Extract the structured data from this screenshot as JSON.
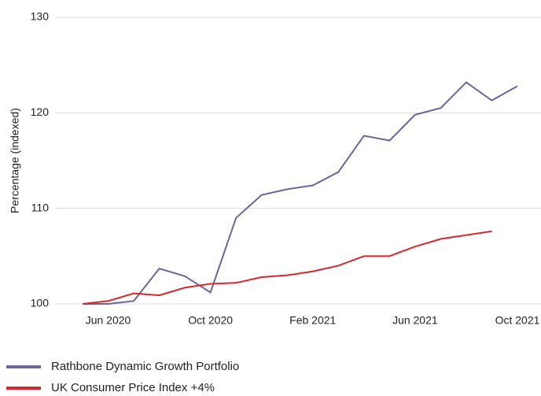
{
  "chart_data": {
    "type": "line",
    "y_label": "Percentage (indexed)",
    "categories": [
      null,
      "Jun 2020",
      null,
      null,
      null,
      "Oct 2020",
      null,
      null,
      null,
      "Feb 2021",
      null,
      null,
      null,
      "Jun 2021",
      null,
      null,
      null,
      "Oct 2021"
    ],
    "series": [
      {
        "name": "Rathbone Dynamic Growth Portfolio",
        "color": "#6e6496",
        "values": [
          100,
          100.0,
          100.3,
          103.7,
          102.9,
          101.2,
          109.0,
          111.4,
          112.0,
          112.4,
          113.8,
          117.6,
          117.1,
          119.8,
          120.5,
          123.2,
          121.3,
          122.8
        ]
      },
      {
        "name": "UK Consumer Price Index +4%",
        "color": "#d7282f",
        "values": [
          100,
          100.3,
          101.1,
          100.9,
          101.7,
          102.1,
          102.2,
          102.8,
          103.0,
          103.4,
          104.0,
          105.0,
          105.0,
          106.0,
          106.8,
          107.2,
          107.6,
          null
        ]
      }
    ],
    "ylim": [
      100,
      130
    ],
    "yticks": [
      100,
      110,
      120,
      130
    ],
    "grid": true,
    "legend": "bottom-left"
  }
}
